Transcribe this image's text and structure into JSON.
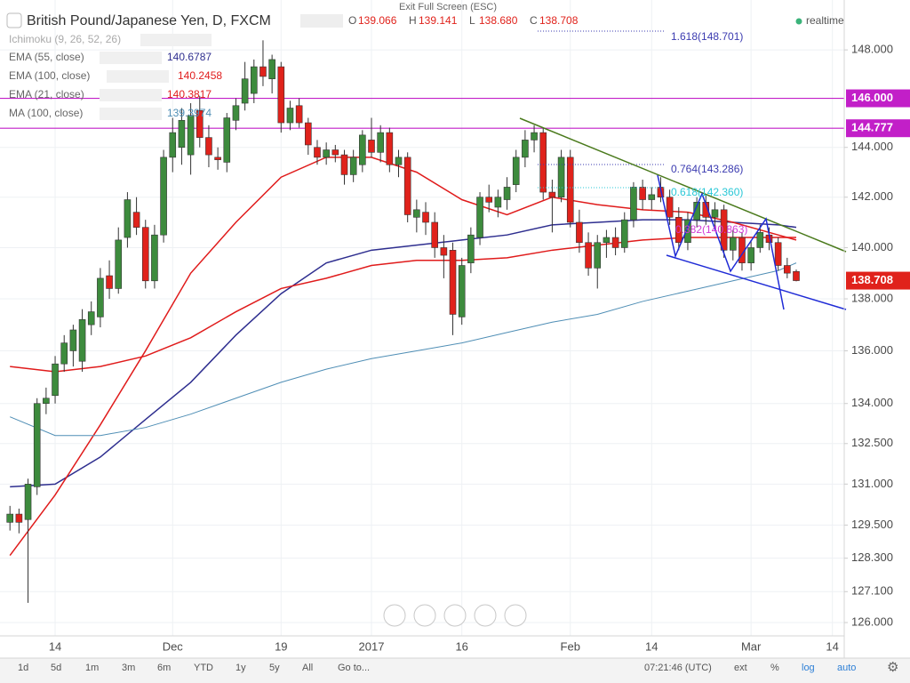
{
  "chart_data": {
    "type": "candlestick",
    "title": "British Pound/Japanese Yen, D, FXCM",
    "ohlc": [
      {
        "name": "O",
        "value": "139.066"
      },
      {
        "name": "H",
        "value": "139.141"
      },
      {
        "name": "L",
        "value": "138.680"
      },
      {
        "name": "C",
        "value": "138.708"
      }
    ],
    "realtime": "realtime",
    "fullscreen": "Exit Full Screen (ESC)",
    "ichimoku": "Ichimoku (9, 26, 52, 26)",
    "log_scale": true,
    "grid": true,
    "up_color": "#3d8b3d",
    "down_color": "#e0221b",
    "ylim": [
      125.53,
      149.79
    ],
    "yticks": [
      {
        "value": 148,
        "label": "148.000"
      },
      {
        "value": 144,
        "label": "144.000"
      },
      {
        "value": 142,
        "label": "142.000"
      },
      {
        "value": 140,
        "label": "140.000"
      },
      {
        "value": 138,
        "label": "138.000"
      },
      {
        "value": 136,
        "label": "136.000"
      },
      {
        "value": 134,
        "label": "134.000"
      },
      {
        "value": 132.5,
        "label": "132.500"
      },
      {
        "value": 131,
        "label": "131.000"
      },
      {
        "value": 129.5,
        "label": "129.500"
      },
      {
        "value": 128.3,
        "label": "128.300"
      },
      {
        "value": 127.1,
        "label": "127.100"
      },
      {
        "value": 126,
        "label": "126.000"
      }
    ],
    "hlines": [
      {
        "value": 146,
        "label": "146.000",
        "color": "#c21fc8"
      },
      {
        "value": 144.777,
        "label": "144.777",
        "color": "#c21fc8"
      }
    ],
    "last_price": {
      "value": 138.708,
      "label": "138.708",
      "color": "#e0221b"
    },
    "categories": [
      null,
      null,
      null,
      null,
      null,
      "14",
      null,
      null,
      null,
      null,
      null,
      null,
      null,
      null,
      null,
      null,
      null,
      null,
      "Dec",
      null,
      null,
      null,
      null,
      null,
      null,
      null,
      null,
      null,
      null,
      null,
      "19",
      null,
      null,
      null,
      null,
      null,
      null,
      null,
      null,
      null,
      "2017",
      null,
      null,
      null,
      null,
      null,
      null,
      null,
      null,
      null,
      "16",
      null,
      null,
      null,
      null,
      null,
      null,
      null,
      null,
      null,
      null,
      null,
      "Feb",
      null,
      null,
      null,
      null,
      null,
      null,
      null,
      null,
      "14",
      null,
      null,
      null,
      null,
      null,
      null,
      null,
      null,
      null,
      null,
      "Mar",
      null,
      null,
      null,
      null,
      null,
      null,
      null,
      null,
      "14"
    ],
    "candles": [
      [
        129.6,
        130.2,
        129.3,
        129.9
      ],
      [
        129.9,
        130.1,
        129.2,
        129.6
      ],
      [
        129.7,
        131.2,
        126.7,
        131.0
      ],
      [
        130.9,
        134.2,
        130.6,
        134.0
      ],
      [
        134.0,
        134.6,
        133.6,
        134.2
      ],
      [
        134.3,
        135.8,
        134.0,
        135.5
      ],
      [
        135.5,
        136.6,
        135.2,
        136.3
      ],
      [
        136.0,
        137.0,
        135.4,
        136.8
      ],
      [
        135.6,
        137.6,
        135.2,
        137.2
      ],
      [
        137.0,
        137.9,
        136.6,
        137.5
      ],
      [
        137.3,
        139.2,
        136.9,
        138.8
      ],
      [
        138.9,
        139.5,
        138.0,
        138.4
      ],
      [
        138.4,
        140.8,
        138.2,
        140.3
      ],
      [
        140.4,
        142.2,
        140.0,
        141.9
      ],
      [
        141.4,
        142.0,
        140.5,
        140.8
      ],
      [
        140.8,
        141.1,
        138.4,
        138.7
      ],
      [
        138.7,
        140.9,
        138.4,
        140.5
      ],
      [
        140.5,
        143.9,
        140.2,
        143.6
      ],
      [
        143.6,
        145.2,
        143.0,
        144.6
      ],
      [
        144.0,
        145.6,
        143.3,
        145.1
      ],
      [
        143.7,
        145.8,
        142.9,
        145.3
      ],
      [
        145.5,
        146.1,
        144.0,
        144.4
      ],
      [
        144.4,
        144.9,
        143.2,
        143.7
      ],
      [
        143.6,
        144.0,
        143.1,
        143.5
      ],
      [
        143.4,
        145.4,
        143.0,
        145.2
      ],
      [
        145.1,
        146.0,
        144.7,
        145.7
      ],
      [
        145.8,
        147.5,
        145.5,
        146.8
      ],
      [
        146.2,
        147.6,
        145.8,
        147.3
      ],
      [
        147.3,
        148.4,
        146.5,
        146.9
      ],
      [
        146.8,
        147.8,
        146.2,
        147.6
      ],
      [
        147.3,
        147.5,
        144.6,
        145.0
      ],
      [
        145.0,
        145.9,
        144.7,
        145.6
      ],
      [
        145.7,
        146.0,
        144.8,
        145.0
      ],
      [
        145.0,
        145.2,
        143.7,
        144.1
      ],
      [
        144.0,
        144.3,
        143.3,
        143.6
      ],
      [
        143.6,
        144.2,
        143.3,
        143.9
      ],
      [
        143.9,
        144.1,
        143.4,
        143.7
      ],
      [
        143.7,
        143.9,
        142.5,
        142.9
      ],
      [
        142.9,
        143.9,
        142.6,
        143.6
      ],
      [
        143.3,
        144.7,
        143.0,
        144.5
      ],
      [
        144.3,
        145.2,
        143.6,
        143.8
      ],
      [
        143.8,
        144.9,
        143.4,
        144.6
      ],
      [
        144.6,
        144.8,
        143.0,
        143.3
      ],
      [
        143.3,
        143.9,
        142.8,
        143.6
      ],
      [
        143.6,
        143.8,
        141.0,
        141.3
      ],
      [
        141.2,
        141.9,
        140.6,
        141.5
      ],
      [
        141.4,
        141.8,
        140.5,
        141.0
      ],
      [
        141.0,
        141.4,
        139.6,
        140.0
      ],
      [
        140.0,
        140.5,
        138.8,
        139.7
      ],
      [
        139.9,
        140.2,
        136.6,
        137.4
      ],
      [
        137.3,
        139.6,
        137.0,
        139.3
      ],
      [
        139.4,
        140.8,
        139.0,
        140.5
      ],
      [
        140.4,
        142.2,
        140.1,
        142.0
      ],
      [
        142.0,
        142.5,
        141.4,
        141.8
      ],
      [
        141.6,
        142.3,
        141.2,
        142.0
      ],
      [
        141.9,
        142.8,
        141.5,
        142.4
      ],
      [
        142.5,
        143.9,
        142.2,
        143.6
      ],
      [
        143.6,
        144.7,
        143.2,
        144.3
      ],
      [
        144.3,
        144.9,
        143.8,
        144.6
      ],
      [
        144.6,
        144.8,
        141.9,
        142.2
      ],
      [
        142.2,
        142.7,
        140.6,
        142.0
      ],
      [
        142.0,
        143.9,
        141.8,
        143.6
      ],
      [
        143.6,
        143.9,
        140.8,
        141.0
      ],
      [
        141.0,
        141.5,
        139.8,
        140.2
      ],
      [
        140.2,
        140.6,
        138.9,
        139.2
      ],
      [
        139.2,
        140.5,
        138.4,
        140.2
      ],
      [
        140.2,
        140.7,
        139.6,
        140.4
      ],
      [
        140.4,
        140.8,
        139.7,
        140.0
      ],
      [
        140.0,
        141.4,
        139.8,
        141.1
      ],
      [
        141.1,
        142.6,
        140.8,
        142.4
      ],
      [
        142.4,
        142.7,
        141.5,
        141.9
      ],
      [
        141.9,
        142.4,
        141.5,
        142.1
      ],
      [
        142.4,
        142.8,
        141.8,
        142.0
      ],
      [
        142.0,
        142.3,
        140.9,
        141.2
      ],
      [
        141.2,
        141.6,
        139.9,
        140.2
      ],
      [
        140.2,
        141.4,
        139.9,
        141.1
      ],
      [
        141.1,
        142.0,
        140.8,
        141.8
      ],
      [
        141.8,
        142.1,
        140.9,
        141.2
      ],
      [
        141.2,
        141.8,
        140.8,
        141.5
      ],
      [
        141.5,
        141.7,
        139.6,
        139.9
      ],
      [
        139.9,
        140.7,
        139.5,
        140.4
      ],
      [
        140.4,
        140.6,
        139.1,
        139.4
      ],
      [
        139.4,
        140.3,
        139.1,
        140.0
      ],
      [
        140.0,
        140.9,
        139.8,
        140.6
      ],
      [
        140.5,
        140.8,
        139.9,
        140.2
      ],
      [
        140.2,
        140.4,
        139.1,
        139.3
      ],
      [
        139.3,
        139.6,
        138.8,
        139.0
      ],
      [
        139.066,
        139.141,
        138.68,
        138.708
      ],
      null,
      null,
      null,
      null
    ],
    "line_x": [
      0,
      5,
      10,
      15,
      20,
      25,
      30,
      35,
      40,
      45,
      50,
      55,
      60,
      65,
      70,
      75,
      80,
      85,
      87
    ],
    "indicators": [
      {
        "name": "EMA (55, close)",
        "value": 140.6787,
        "color": "#2e2e8f",
        "values": [
          130.9,
          131.0,
          132.0,
          133.4,
          134.8,
          136.6,
          138.2,
          139.4,
          139.9,
          140.1,
          140.3,
          140.5,
          140.9,
          141.0,
          141.1,
          141.1,
          141.0,
          140.9,
          140.8
        ]
      },
      {
        "name": "EMA (100, close)",
        "value": 140.2458,
        "color": "#e01b1b",
        "values": [
          135.4,
          135.2,
          135.4,
          135.8,
          136.5,
          137.5,
          138.4,
          138.8,
          139.3,
          139.5,
          139.5,
          139.6,
          139.9,
          140.1,
          140.3,
          140.4,
          140.4,
          140.4,
          140.4
        ]
      },
      {
        "name": "EMA (21, close)",
        "value": 140.3817,
        "color": "#e01b1b",
        "values": [
          128.4,
          130.6,
          133.2,
          136.0,
          139.0,
          141.0,
          142.8,
          143.6,
          143.6,
          143.0,
          141.9,
          141.3,
          142.0,
          141.7,
          141.5,
          141.4,
          141.0,
          140.5,
          140.3
        ]
      },
      {
        "name": "MA (100, close)",
        "value": 139.3974,
        "color": "#4f8eb5",
        "values": [
          133.5,
          132.8,
          132.8,
          133.1,
          133.6,
          134.2,
          134.8,
          135.3,
          135.7,
          136.0,
          136.3,
          136.7,
          137.1,
          137.4,
          137.9,
          138.3,
          138.7,
          139.1,
          139.4
        ]
      }
    ],
    "annotations": [
      {
        "label": "1.618(148.701)",
        "color": "#3b3bb0"
      },
      {
        "label": "0.764(143.286)",
        "color": "#3b3bb0"
      },
      {
        "label": "0.618(142.360)",
        "color": "#29c7d6"
      },
      {
        "label": "0.382(140.863)",
        "color": "#d23bd6"
      }
    ],
    "toolbar": [
      "1d",
      "5d",
      "1m",
      "3m",
      "6m",
      "YTD",
      "1y",
      "5y",
      "All",
      "Go to..."
    ],
    "status": [
      "07:21:46 (UTC)",
      "ext",
      "%",
      "log",
      "auto"
    ]
  }
}
